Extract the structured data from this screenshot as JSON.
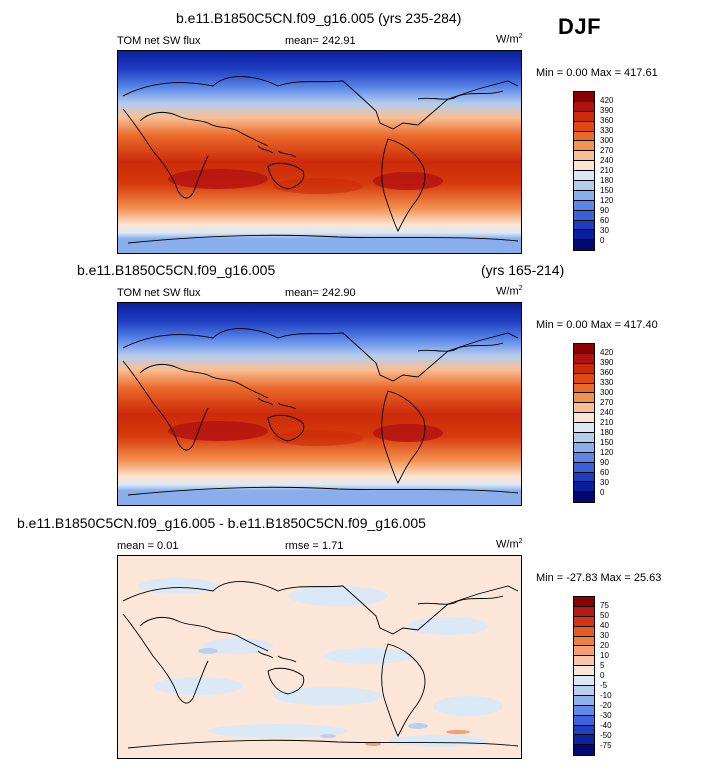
{
  "season": "DJF",
  "units_base": "W/m",
  "units_exp": "2",
  "panels": [
    {
      "title": "b.e11.B1850C5CN.f09_g16.005 (yrs 235-284)",
      "left_label": "TOM net SW flux",
      "center_label": "mean= 242.91",
      "minmax": "Min =   0.00 Max = 417.61",
      "levels": [
        "420",
        "390",
        "360",
        "330",
        "300",
        "270",
        "240",
        "210",
        "180",
        "150",
        "120",
        "90",
        "60",
        "30",
        "0"
      ]
    },
    {
      "title": "b.e11.B1850C5CN.f09_g16.005",
      "title_right": "(yrs 165-214)",
      "left_label": "TOM net SW flux",
      "center_label": "mean= 242.90",
      "minmax": "Min =   0.00 Max = 417.40",
      "levels": [
        "420",
        "390",
        "360",
        "330",
        "300",
        "270",
        "240",
        "210",
        "180",
        "150",
        "120",
        "90",
        "60",
        "30",
        "0"
      ]
    },
    {
      "title": "b.e11.B1850C5CN.f09_g16.005 - b.e11.B1850C5CN.f09_g16.005",
      "left_label": "mean =   0.01",
      "center_label": "rmse =   1.71",
      "minmax": "Min = -27.83 Max =  25.63",
      "levels": [
        "75",
        "50",
        "40",
        "30",
        "20",
        "10",
        "5",
        "0",
        "-5",
        "-10",
        "-20",
        "-30",
        "-40",
        "-50",
        "-75"
      ]
    }
  ],
  "colors": {
    "abs_scale": [
      "#8b0000",
      "#b01212",
      "#cc2a0a",
      "#e04a0f",
      "#eb6a2a",
      "#f39150",
      "#f8bf95",
      "#fbe4d4",
      "#dce8f5",
      "#b3cdee",
      "#88aeeb",
      "#5a86e8",
      "#3a61dc",
      "#1e3cc0",
      "#0a1f9c",
      "#000a6e"
    ],
    "diff_scale": [
      "#8b0000",
      "#b81818",
      "#d43316",
      "#e85a20",
      "#f08040",
      "#f5a072",
      "#f8c6a8",
      "#fce6d8",
      "#dbe9f7",
      "#b8d0ee",
      "#8fb2ea",
      "#5f8ae6",
      "#3c64dc",
      "#2040c0",
      "#0c24a0",
      "#000a70"
    ],
    "land_outline": "#000000"
  }
}
